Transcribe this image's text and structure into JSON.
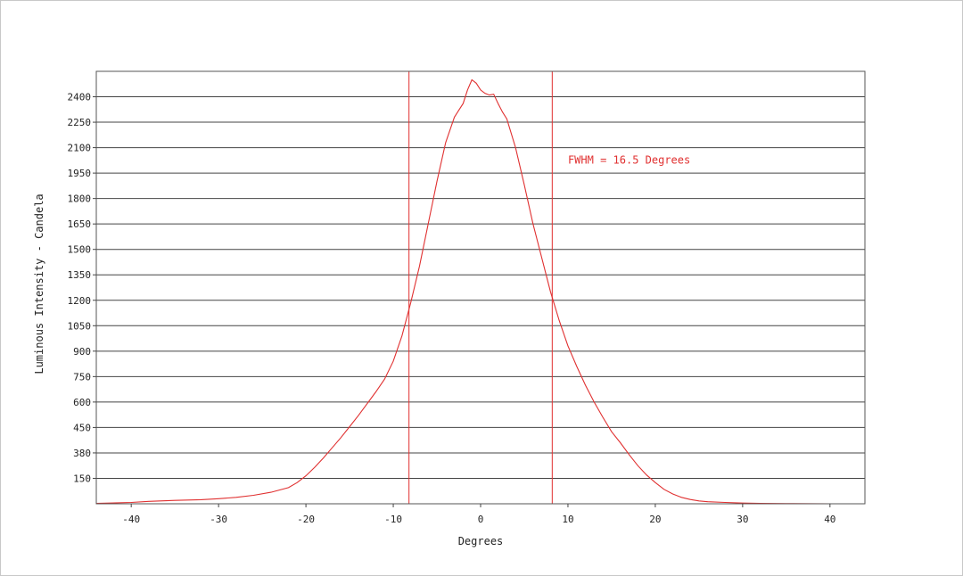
{
  "chart_data": {
    "type": "line",
    "title": "",
    "xlabel": "Degrees",
    "ylabel": "Luminous Intensity - Candela",
    "xlim": [
      -44,
      44
    ],
    "ylim": [
      0,
      2550
    ],
    "x_ticks": [
      -40,
      -30,
      -20,
      -10,
      0,
      10,
      20,
      30,
      40
    ],
    "y_ticks": [
      150,
      380,
      450,
      600,
      750,
      900,
      1050,
      1200,
      1350,
      1500,
      1650,
      1800,
      1950,
      2100,
      2250,
      2400
    ],
    "grid": "horizontal",
    "line_color": "#e03030",
    "annotation": {
      "text": "FWHM = 16.5 Degrees",
      "color": "#e03030",
      "x": 10,
      "y": 2005
    },
    "vlines": [
      -8.2,
      8.2
    ],
    "series": [
      {
        "name": "",
        "x": [
          -44,
          -40,
          -38,
          -35,
          -32,
          -30,
          -28,
          -26,
          -24,
          -22,
          -21,
          -20,
          -19,
          -18,
          -17,
          -16,
          -15,
          -14,
          -13,
          -12,
          -11,
          -10,
          -9,
          -8,
          -7,
          -6,
          -5,
          -4,
          -3,
          -2.5,
          -2,
          -1.5,
          -1,
          -0.5,
          0,
          0.5,
          1,
          1.5,
          2,
          2.5,
          3,
          4,
          5,
          6,
          7,
          8,
          9,
          10,
          11,
          12,
          13,
          14,
          15,
          16,
          17,
          18,
          19,
          20,
          21,
          22,
          23,
          24,
          25,
          26,
          28,
          30,
          32,
          35,
          40,
          44
        ],
        "y": [
          2,
          8,
          14,
          20,
          24,
          30,
          38,
          50,
          68,
          95,
          125,
          165,
          215,
          270,
          330,
          390,
          455,
          520,
          590,
          660,
          735,
          840,
          990,
          1185,
          1400,
          1650,
          1900,
          2130,
          2280,
          2320,
          2360,
          2440,
          2500,
          2480,
          2440,
          2420,
          2410,
          2415,
          2360,
          2310,
          2270,
          2100,
          1880,
          1650,
          1450,
          1250,
          1080,
          930,
          810,
          700,
          600,
          510,
          425,
          360,
          290,
          225,
          170,
          125,
          85,
          58,
          38,
          25,
          17,
          12,
          8,
          4,
          2,
          1,
          0,
          0
        ]
      }
    ]
  }
}
